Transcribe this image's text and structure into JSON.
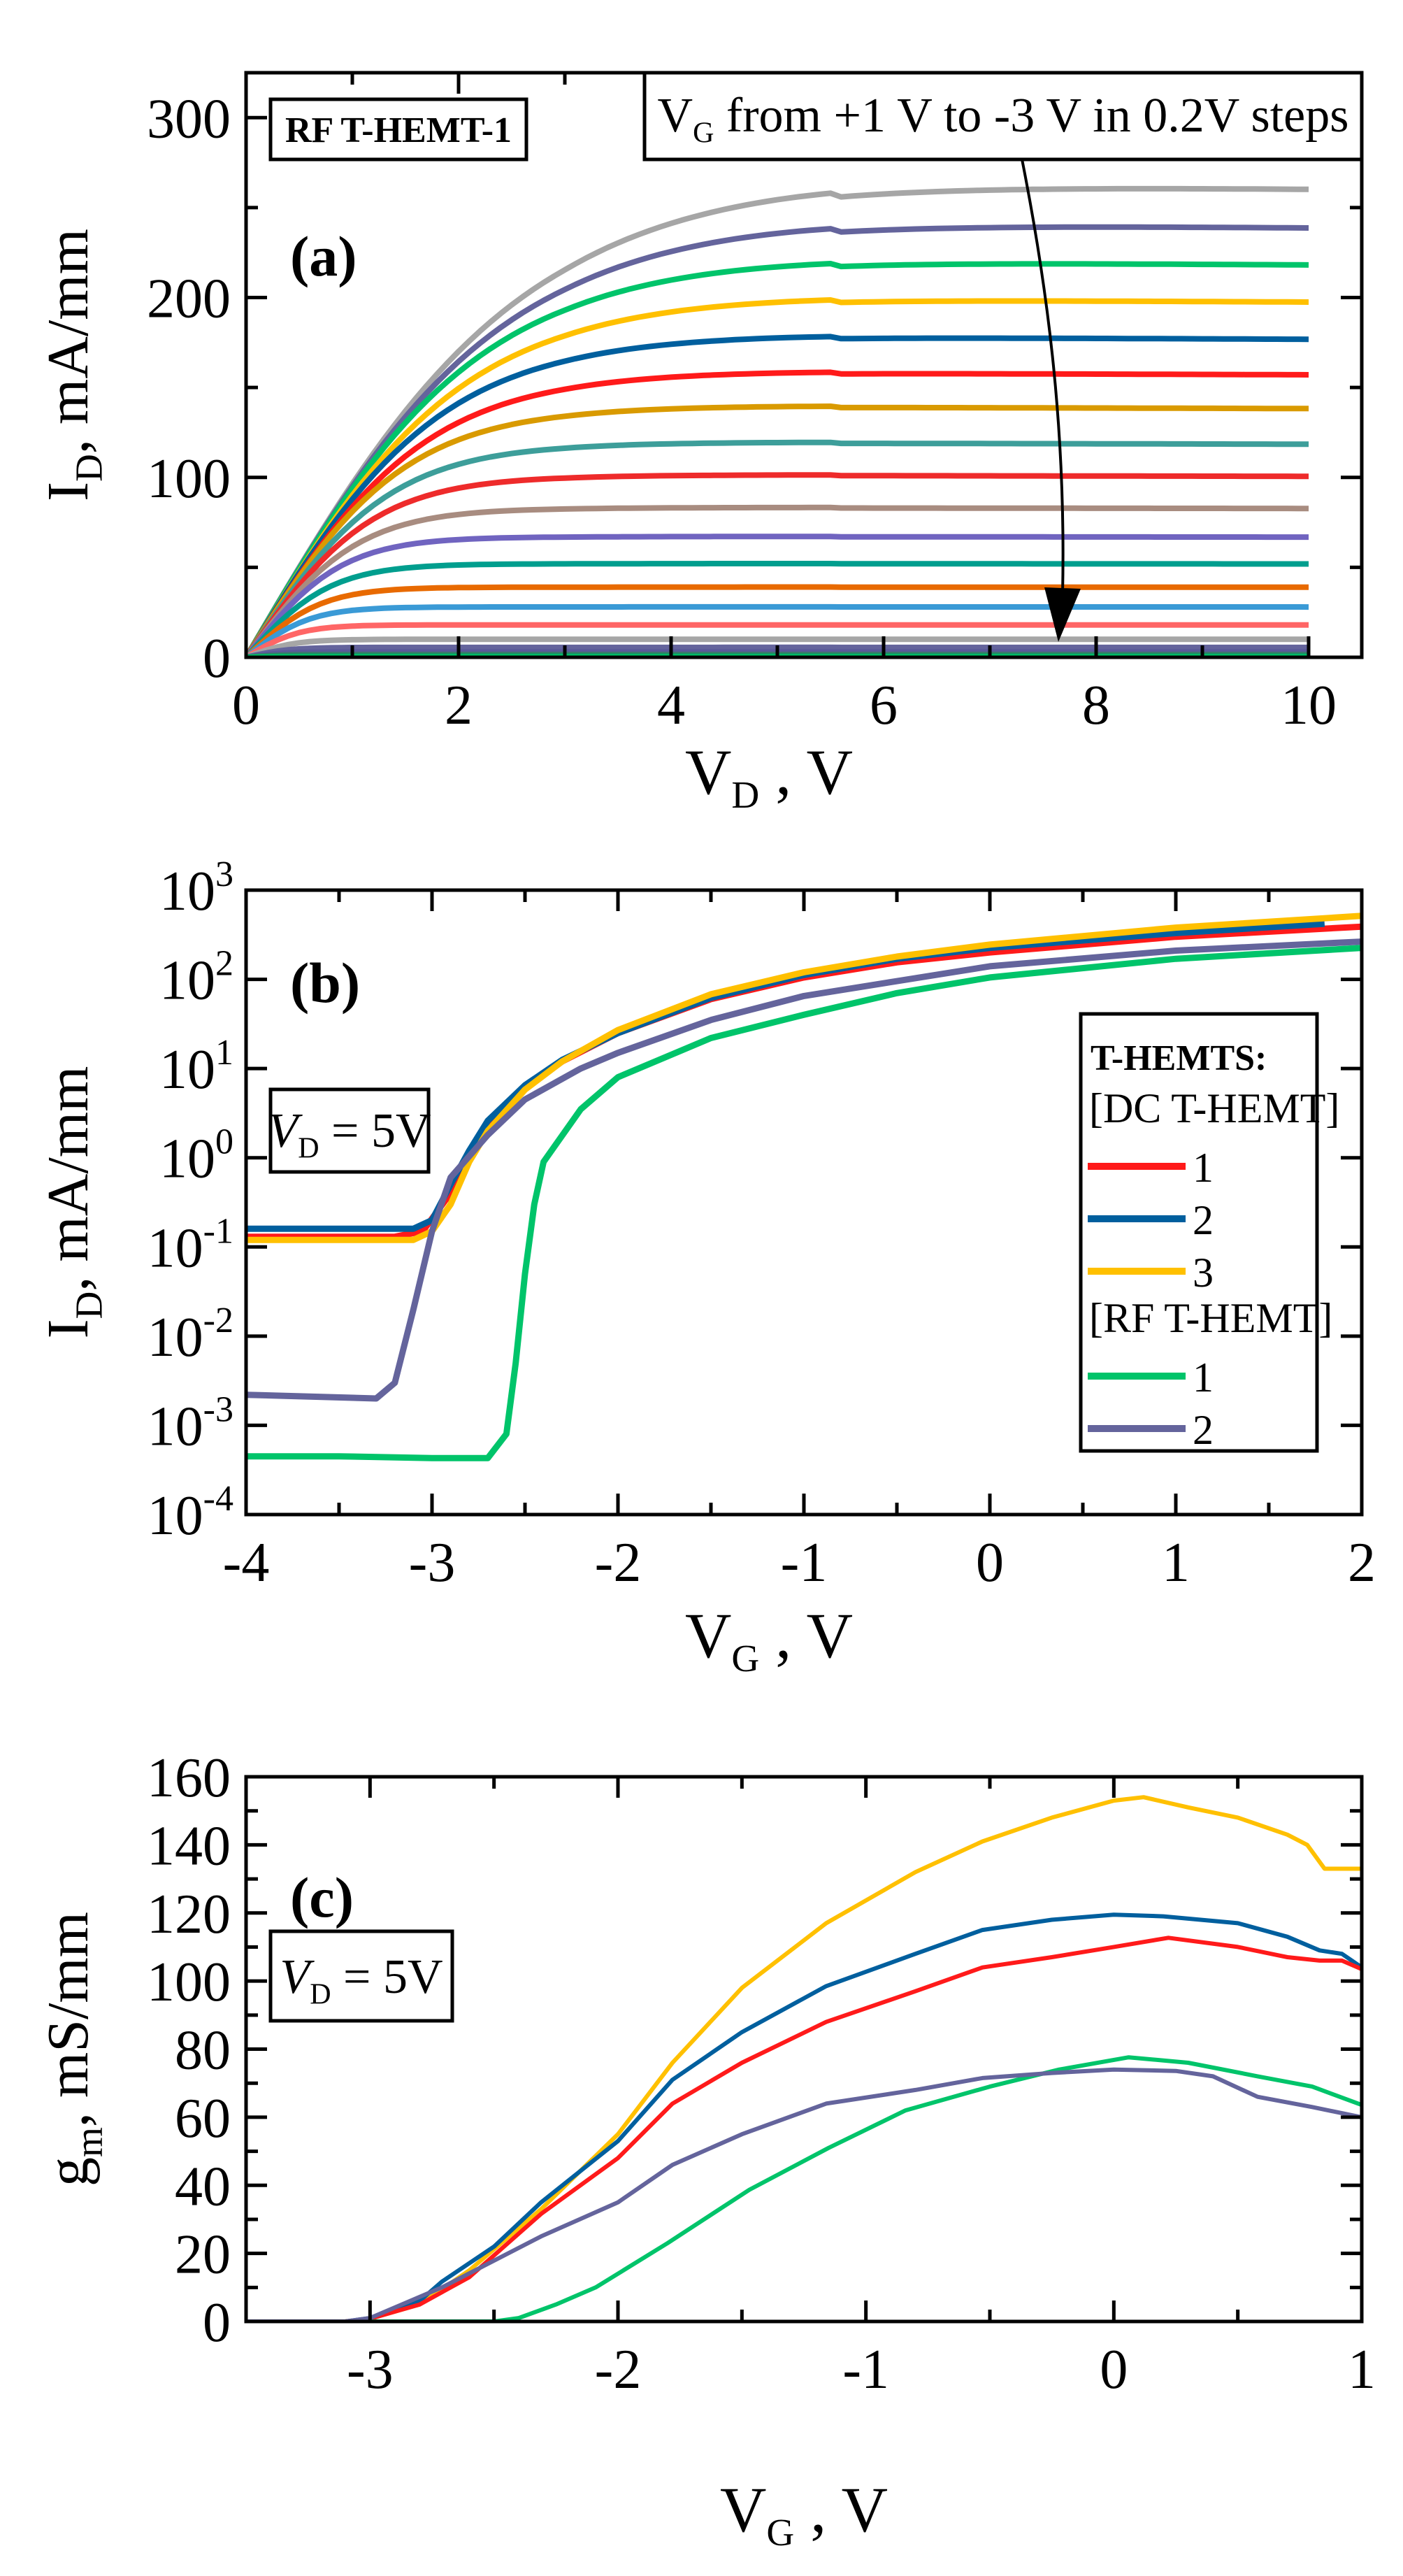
{
  "chart_data": [
    {
      "panel": "(a)",
      "type": "line",
      "title": "RF T-HEMT-1",
      "annotation": "VG from +1 V to -3 V in 0.2V steps",
      "annotation_parts": {
        "main": "V",
        "sub": "G",
        "rest": " from +1 V to -3 V in 0.2V steps"
      },
      "xlabel": {
        "main": "V",
        "sub": "D",
        "rest": " , V"
      },
      "ylabel": {
        "main": "I",
        "sub": "D",
        "rest": ", mA/mm"
      },
      "xlim": [
        0,
        10.5
      ],
      "ylim": [
        0,
        325
      ],
      "xticks": [
        0,
        2,
        4,
        6,
        8,
        10
      ],
      "xtick_labels": [
        "0",
        "2",
        "4",
        "6",
        "8",
        "10"
      ],
      "yticks": [
        0,
        100,
        200,
        300
      ],
      "ytick_labels": [
        "0",
        "100",
        "200",
        "300"
      ],
      "x": [
        0,
        0.25,
        0.5,
        0.75,
        1,
        1.5,
        2,
        2.5,
        3,
        3.5,
        4,
        4.5,
        5,
        5.5,
        6,
        7,
        8,
        9,
        10
      ],
      "series_model": "ID = Isat * tanh(VD / Vknee)",
      "series": [
        {
          "vg": 1.0,
          "isat": 263,
          "vknee": 2.6,
          "color": "#a6a6a6"
        },
        {
          "vg": 0.8,
          "isat": 241,
          "vknee": 2.4,
          "color": "#64649c"
        },
        {
          "vg": 0.6,
          "isat": 220,
          "vknee": 2.2,
          "color": "#00c46a"
        },
        {
          "vg": 0.4,
          "isat": 199,
          "vknee": 2.05,
          "color": "#ffc000"
        },
        {
          "vg": 0.2,
          "isat": 178,
          "vknee": 1.85,
          "color": "#005f9e"
        },
        {
          "vg": 0.0,
          "isat": 158,
          "vknee": 1.7,
          "color": "#ff1a1a"
        },
        {
          "vg": -0.2,
          "isat": 139,
          "vknee": 1.5,
          "color": "#d99a00"
        },
        {
          "vg": -0.4,
          "isat": 119,
          "vknee": 1.35,
          "color": "#3d9e9a"
        },
        {
          "vg": -0.6,
          "isat": 101,
          "vknee": 1.2,
          "color": "#ee2b2b"
        },
        {
          "vg": -0.8,
          "isat": 83,
          "vknee": 1.05,
          "color": "#a88c80"
        },
        {
          "vg": -1.0,
          "isat": 67,
          "vknee": 0.9,
          "color": "#7064c0"
        },
        {
          "vg": -1.2,
          "isat": 52,
          "vknee": 0.8,
          "color": "#009e8e"
        },
        {
          "vg": -1.4,
          "isat": 39,
          "vknee": 0.7,
          "color": "#e86a00"
        },
        {
          "vg": -1.6,
          "isat": 28,
          "vknee": 0.6,
          "color": "#3a9ad6"
        },
        {
          "vg": -1.8,
          "isat": 18,
          "vknee": 0.5,
          "color": "#ff6666"
        },
        {
          "vg": -2.0,
          "isat": 10,
          "vknee": 0.45,
          "color": "#a6a6a6"
        },
        {
          "vg": -2.2,
          "isat": 5.5,
          "vknee": 0.4,
          "color": "#64649c"
        },
        {
          "vg": -2.4,
          "isat": 3,
          "vknee": 0.35,
          "color": "#5a5a9a"
        },
        {
          "vg": -2.6,
          "isat": 1.5,
          "vknee": 0.3,
          "color": "#3a7a6a"
        },
        {
          "vg": -2.8,
          "isat": 0.6,
          "vknee": 0.3,
          "color": "#00a060"
        },
        {
          "vg": -3.0,
          "isat": 0.2,
          "vknee": 0.3,
          "color": "#00c46a"
        }
      ]
    },
    {
      "panel": "(b)",
      "type": "line",
      "yscale": "log",
      "annotation_parts": {
        "main": "V",
        "sub": "D",
        "rest": " = 5V"
      },
      "xlabel": {
        "main": "V",
        "sub": "G",
        "rest": " , V"
      },
      "ylabel": {
        "main": "I",
        "sub": "D",
        "rest": ", mA/mm"
      },
      "xlim": [
        -4,
        2
      ],
      "ylim": [
        0.0001,
        1000
      ],
      "xticks": [
        -4,
        -3,
        -2,
        -1,
        0,
        1,
        2
      ],
      "xtick_labels": [
        "-4",
        "-3",
        "-2",
        "-1",
        "0",
        "1",
        "2"
      ],
      "yticks_exp": [
        -4,
        -3,
        -2,
        -1,
        0,
        1,
        2,
        3
      ],
      "ytick_labels": [
        {
          "base": "10",
          "exp": "-4"
        },
        {
          "base": "10",
          "exp": "-3"
        },
        {
          "base": "10",
          "exp": "-2"
        },
        {
          "base": "10",
          "exp": "-1"
        },
        {
          "base": "10",
          "exp": "0"
        },
        {
          "base": "10",
          "exp": "1"
        },
        {
          "base": "10",
          "exp": "2"
        },
        {
          "base": "10",
          "exp": "3"
        }
      ],
      "legend": {
        "title": "T-HEMTS:",
        "group1": "[DC T-HEMT]",
        "group2": "[RF T-HEMT]",
        "position": "right"
      },
      "series": [
        {
          "name": "1",
          "group": "DC T-HEMT",
          "color": "#ff1a1a",
          "points": [
            [
              -4,
              0.13
            ],
            [
              -3.2,
              0.13
            ],
            [
              -3.05,
              0.15
            ],
            [
              -2.9,
              0.4
            ],
            [
              -2.8,
              1.0
            ],
            [
              -2.7,
              2.2
            ],
            [
              -2.5,
              6
            ],
            [
              -2.3,
              12
            ],
            [
              -2,
              25
            ],
            [
              -1.5,
              60
            ],
            [
              -1,
              105
            ],
            [
              -0.5,
              155
            ],
            [
              0,
              200
            ],
            [
              1,
              300
            ],
            [
              2,
              390
            ]
          ]
        },
        {
          "name": "2",
          "group": "DC T-HEMT",
          "color": "#005f9e",
          "points": [
            [
              -4,
              0.16
            ],
            [
              -3.1,
              0.16
            ],
            [
              -3.0,
              0.2
            ],
            [
              -2.9,
              0.5
            ],
            [
              -2.8,
              1.2
            ],
            [
              -2.7,
              2.6
            ],
            [
              -2.5,
              6.5
            ],
            [
              -2.3,
              12.5
            ],
            [
              -2,
              25
            ],
            [
              -1.5,
              62
            ],
            [
              -1,
              112
            ],
            [
              -0.5,
              170
            ],
            [
              0,
              225
            ],
            [
              1,
              330
            ],
            [
              1.8,
              420
            ]
          ]
        },
        {
          "name": "3",
          "group": "DC T-HEMT",
          "color": "#ffc000",
          "points": [
            [
              -4,
              0.12
            ],
            [
              -3.1,
              0.12
            ],
            [
              -3.0,
              0.15
            ],
            [
              -2.9,
              0.3
            ],
            [
              -2.8,
              0.9
            ],
            [
              -2.7,
              2.0
            ],
            [
              -2.5,
              5.8
            ],
            [
              -2.3,
              12
            ],
            [
              -2,
              27
            ],
            [
              -1.5,
              68
            ],
            [
              -1,
              120
            ],
            [
              -0.5,
              180
            ],
            [
              0,
              245
            ],
            [
              1,
              380
            ],
            [
              2,
              515
            ]
          ]
        },
        {
          "name": "1",
          "group": "RF T-HEMT",
          "color": "#00c46a",
          "points": [
            [
              -4,
              0.00045
            ],
            [
              -3.5,
              0.00045
            ],
            [
              -3,
              0.00043
            ],
            [
              -2.7,
              0.00043
            ],
            [
              -2.6,
              0.0008
            ],
            [
              -2.55,
              0.005
            ],
            [
              -2.5,
              0.05
            ],
            [
              -2.45,
              0.3
            ],
            [
              -2.4,
              0.9
            ],
            [
              -2.2,
              3.5
            ],
            [
              -2,
              8
            ],
            [
              -1.5,
              22
            ],
            [
              -1,
              40
            ],
            [
              -0.5,
              70
            ],
            [
              0,
              105
            ],
            [
              1,
              170
            ],
            [
              2,
              225
            ]
          ]
        },
        {
          "name": "2",
          "group": "RF T-HEMT",
          "color": "#64649c",
          "points": [
            [
              -4,
              0.0022
            ],
            [
              -3.3,
              0.002
            ],
            [
              -3.2,
              0.003
            ],
            [
              -3.1,
              0.02
            ],
            [
              -3.0,
              0.15
            ],
            [
              -2.9,
              0.6
            ],
            [
              -2.7,
              1.8
            ],
            [
              -2.5,
              4.5
            ],
            [
              -2.2,
              10
            ],
            [
              -2,
              15
            ],
            [
              -1.5,
              35
            ],
            [
              -1,
              65
            ],
            [
              0,
              140
            ],
            [
              1,
              210
            ],
            [
              2,
              265
            ]
          ]
        }
      ]
    },
    {
      "panel": "(c)",
      "type": "line",
      "annotation_parts": {
        "main": "V",
        "sub": "D",
        "rest": " = 5V"
      },
      "xlabel": {
        "main": "V",
        "sub": "G",
        "rest": " , V"
      },
      "ylabel": {
        "main": "g",
        "sub": "m",
        "rest": ", mS/mm"
      },
      "xlim": [
        -3.5,
        1
      ],
      "ylim": [
        0,
        160
      ],
      "xticks": [
        -3,
        -2,
        -1,
        0,
        1
      ],
      "xtick_labels": [
        "-3",
        "-2",
        "-1",
        "0",
        "1"
      ],
      "yticks": [
        0,
        20,
        40,
        60,
        80,
        100,
        120,
        140,
        160
      ],
      "ytick_labels": [
        "0",
        "20",
        "40",
        "60",
        "80",
        "100",
        "120",
        "140",
        "160"
      ],
      "series": [
        {
          "name": "DC T-HEMT 3",
          "color": "#ffc000",
          "points": [
            [
              -3.5,
              0
            ],
            [
              -3.1,
              0
            ],
            [
              -3,
              0.8
            ],
            [
              -2.8,
              5
            ],
            [
              -2.6,
              15
            ],
            [
              -2.31,
              33
            ],
            [
              -2,
              55
            ],
            [
              -1.78,
              76
            ],
            [
              -1.5,
              98
            ],
            [
              -1.16,
              117
            ],
            [
              -0.8,
              132
            ],
            [
              -0.53,
              141
            ],
            [
              -0.25,
              148
            ],
            [
              0,
              153
            ],
            [
              0.12,
              154
            ],
            [
              0.3,
              151
            ],
            [
              0.5,
              148
            ],
            [
              0.7,
              143
            ],
            [
              0.78,
              140
            ],
            [
              0.85,
              133
            ],
            [
              0.92,
              133
            ],
            [
              1,
              133
            ]
          ]
        },
        {
          "name": "DC T-HEMT 2",
          "color": "#005f9e",
          "points": [
            [
              -3.5,
              0
            ],
            [
              -3.1,
              0
            ],
            [
              -3,
              1
            ],
            [
              -2.8,
              6
            ],
            [
              -2.71,
              11.7
            ],
            [
              -2.5,
              22
            ],
            [
              -2.31,
              35
            ],
            [
              -2,
              53
            ],
            [
              -1.78,
              71
            ],
            [
              -1.5,
              85
            ],
            [
              -1.16,
              98.5
            ],
            [
              -0.8,
              108
            ],
            [
              -0.53,
              115
            ],
            [
              -0.25,
              118
            ],
            [
              0,
              119.5
            ],
            [
              0.2,
              119
            ],
            [
              0.5,
              117
            ],
            [
              0.7,
              113
            ],
            [
              0.83,
              109
            ],
            [
              0.92,
              108
            ],
            [
              1,
              104
            ]
          ]
        },
        {
          "name": "DC T-HEMT 1",
          "color": "#ff1a1a",
          "points": [
            [
              -3.5,
              0
            ],
            [
              -3.1,
              0
            ],
            [
              -3,
              0.8
            ],
            [
              -2.8,
              5
            ],
            [
              -2.6,
              13
            ],
            [
              -2.31,
              31.6
            ],
            [
              -2,
              48
            ],
            [
              -1.78,
              64
            ],
            [
              -1.5,
              76
            ],
            [
              -1.16,
              88
            ],
            [
              -0.8,
              97
            ],
            [
              -0.53,
              104
            ],
            [
              -0.25,
              107
            ],
            [
              0,
              110
            ],
            [
              0.22,
              112.7
            ],
            [
              0.5,
              110
            ],
            [
              0.7,
              107
            ],
            [
              0.83,
              106
            ],
            [
              0.92,
              106
            ],
            [
              1,
              103.5
            ]
          ]
        },
        {
          "name": "RF T-HEMT 1",
          "color": "#00c46a",
          "points": [
            [
              -3.5,
              0
            ],
            [
              -2.5,
              0
            ],
            [
              -2.4,
              1
            ],
            [
              -2.25,
              5
            ],
            [
              -2.09,
              10
            ],
            [
              -1.8,
              23
            ],
            [
              -1.47,
              38.7
            ],
            [
              -1.15,
              51
            ],
            [
              -0.84,
              62
            ],
            [
              -0.5,
              69
            ],
            [
              -0.22,
              74
            ],
            [
              0.06,
              77.6
            ],
            [
              0.3,
              76
            ],
            [
              0.58,
              72
            ],
            [
              0.8,
              69
            ],
            [
              1,
              63.6
            ]
          ]
        },
        {
          "name": "RF T-HEMT 2",
          "color": "#64649c",
          "points": [
            [
              -3.5,
              0
            ],
            [
              -3.1,
              0
            ],
            [
              -3,
              1
            ],
            [
              -2.71,
              10
            ],
            [
              -2.31,
              25
            ],
            [
              -2,
              35
            ],
            [
              -1.78,
              46
            ],
            [
              -1.5,
              55
            ],
            [
              -1.16,
              64
            ],
            [
              -0.8,
              68
            ],
            [
              -0.53,
              71.5
            ],
            [
              -0.25,
              73
            ],
            [
              0,
              74
            ],
            [
              0.25,
              73.6
            ],
            [
              0.4,
              72
            ],
            [
              0.58,
              66
            ],
            [
              0.8,
              63
            ],
            [
              1,
              60
            ]
          ]
        }
      ]
    }
  ]
}
